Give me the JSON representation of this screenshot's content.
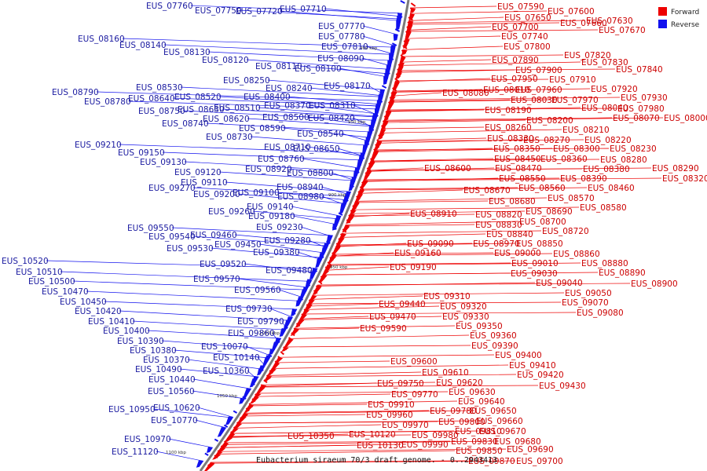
{
  "caption": "Eubacterium siraeum 70/3 draft genome. - 0..2943413",
  "legend": [
    {
      "label": "Forward",
      "color": "#ee0000"
    },
    {
      "label": "Reverse",
      "color": "#1111ee"
    }
  ],
  "ticks": [
    "900 kbp",
    "950 kbp",
    "900 kbp",
    "950 kbp",
    "1000 kbp",
    "1050 kbp",
    "1100 kbp"
  ],
  "forward_labels": [
    "EUS_07590",
    "EUS_07600",
    "EUS_07650",
    "EUS_07660",
    "EUS_07630",
    "EUS_07700",
    "EUS_07670",
    "EUS_07740",
    "EUS_07800",
    "EUS_07820",
    "EUS_07890",
    "EUS_07830",
    "EUS_07840",
    "EUS_07900",
    "EUS_07950",
    "EUS_07910",
    "EUS_07960",
    "EUS_07920",
    "EUS_08010",
    "EUS_07930",
    "EUS_08080",
    "EUS_08030",
    "EUS_07970",
    "EUS_08040",
    "EUS_07980",
    "EUS_08070",
    "EUS_08000",
    "EUS_08190",
    "EUS_08200",
    "EUS_08210",
    "EUS_08260",
    "EUS_08330",
    "EUS_08270",
    "EUS_08220",
    "EUS_08350",
    "EUS_08300",
    "EUS_08230",
    "EUS_08450",
    "EUS_08360",
    "EUS_08280",
    "EUS_08600",
    "EUS_08470",
    "EUS_08380",
    "EUS_08290",
    "EUS_08550",
    "EUS_08390",
    "EUS_08320",
    "EUS_08670",
    "EUS_08560",
    "EUS_08460",
    "EUS_08570",
    "EUS_08680",
    "EUS_08580",
    "EUS_08910",
    "EUS_08820",
    "EUS_08690",
    "EUS_08700",
    "EUS_08830",
    "EUS_08720",
    "EUS_08840",
    "EUS_08970",
    "EUS_08850",
    "EUS_09090",
    "EUS_09000",
    "EUS_08860",
    "EUS_09160",
    "EUS_09010",
    "EUS_08880",
    "EUS_09190",
    "EUS_09030",
    "EUS_08890",
    "EUS_09040",
    "EUS_08900",
    "EUS_09050",
    "EUS_09310",
    "EUS_09070",
    "EUS_09440",
    "EUS_09320",
    "EUS_09080",
    "EUS_09470",
    "EUS_09330",
    "EUS_09590",
    "EUS_09350",
    "EUS_09360",
    "EUS_09390",
    "EUS_09400",
    "EUS_09410",
    "EUS_09600",
    "EUS_09420",
    "EUS_09610",
    "EUS_09430",
    "EUS_09620",
    "EUS_09750",
    "EUS_09630",
    "EUS_09770",
    "EUS_09640",
    "EUS_09910",
    "EUS_09780",
    "EUS_09650",
    "EUS_09960",
    "EUS_09660",
    "EUS_09970",
    "EUS_09800",
    "EUS_09670",
    "EUS_10120",
    "EUS_09980",
    "EUS_09810",
    "EUS_09680",
    "EUS_10350",
    "EUS_10130",
    "EUS_09990",
    "EUS_09830",
    "EUS_09690",
    "EUS_09850",
    "EUS_09870",
    "EUS_09700"
  ],
  "reverse_labels": [
    "EUS_07760",
    "EUS_07750",
    "EUS_07720",
    "EUS_07710",
    "EUS_07770",
    "EUS_07780",
    "EUS_07810",
    "EUS_08160",
    "EUS_08140",
    "EUS_08090",
    "EUS_08130",
    "EUS_08120",
    "EUS_08110",
    "EUS_08100",
    "EUS_08250",
    "EUS_08240",
    "EUS_08170",
    "EUS_08530",
    "EUS_08400",
    "EUS_08790",
    "EUS_08520",
    "EUS_08640",
    "EUS_08370",
    "EUS_08310",
    "EUS_08780",
    "EUS_08510",
    "EUS_08750",
    "EUS_08630",
    "EUS_08500",
    "EUS_08420",
    "EUS_08620",
    "EUS_08740",
    "EUS_08590",
    "EUS_08540",
    "EUS_08730",
    "EUS_08710",
    "EUS_08650",
    "EUS_09210",
    "EUS_08760",
    "EUS_09150",
    "EUS_08920",
    "EUS_09130",
    "EUS_08800",
    "EUS_09120",
    "EUS_09110",
    "EUS_08940",
    "EUS_09270",
    "EUS_09200",
    "EUS_09100",
    "EUS_08980",
    "EUS_09140",
    "EUS_09260",
    "EUS_09180",
    "EUS_09230",
    "EUS_09550",
    "EUS_09460",
    "EUS_09540",
    "EUS_09280",
    "EUS_09450",
    "EUS_09530",
    "EUS_09380",
    "EUS_09520",
    "EUS_09480",
    "EUS_10520",
    "EUS_09570",
    "EUS_10510",
    "EUS_09560",
    "EUS_10500",
    "EUS_10470",
    "EUS_10450",
    "EUS_09730",
    "EUS_10420",
    "EUS_09790",
    "EUS_10410",
    "EUS_09860",
    "EUS_10400",
    "EUS_10390",
    "EUS_10070",
    "EUS_10380",
    "EUS_10140",
    "EUS_10370",
    "EUS_10490",
    "EUS_10360",
    "EUS_10440",
    "EUS_10560",
    "EUS_10950",
    "EUS_10620",
    "EUS_10770",
    "EUS_10970",
    "EUS_11120"
  ]
}
